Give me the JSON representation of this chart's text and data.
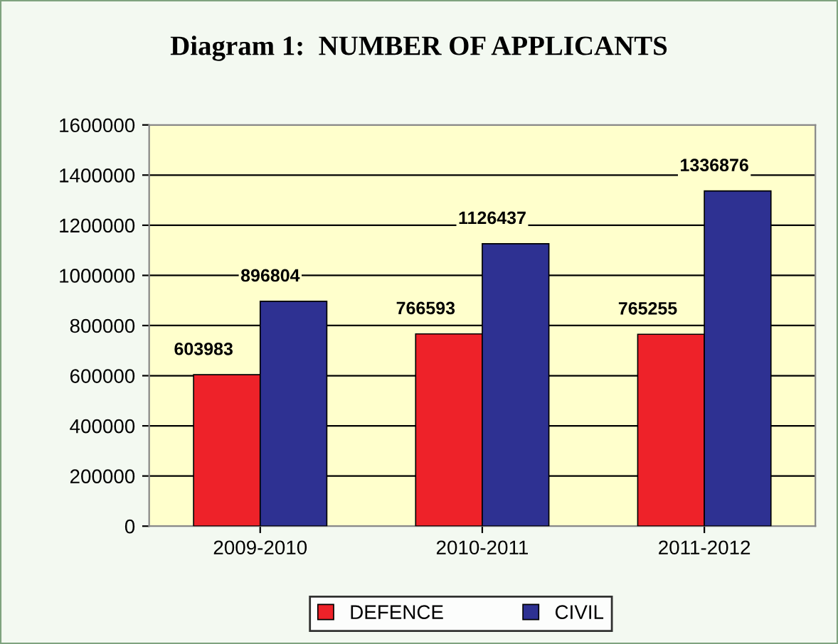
{
  "chart_data": {
    "type": "bar",
    "title": "Diagram 1:  NUMBER OF APPLICANTS",
    "categories": [
      "2009-2010",
      "2010-2011",
      "2011-2012"
    ],
    "series": [
      {
        "name": "DEFENCE",
        "color": "#ee2229",
        "values": [
          603983,
          766593,
          765255
        ]
      },
      {
        "name": "CIVIL",
        "color": "#2e3192",
        "values": [
          896804,
          1126437,
          1336876
        ]
      }
    ],
    "ylim": [
      0,
      1600000
    ],
    "yticks": [
      0,
      200000,
      400000,
      600000,
      800000,
      1000000,
      1200000,
      1400000,
      1600000
    ],
    "grid": "y",
    "legend": "bottom",
    "data_labels": true
  }
}
